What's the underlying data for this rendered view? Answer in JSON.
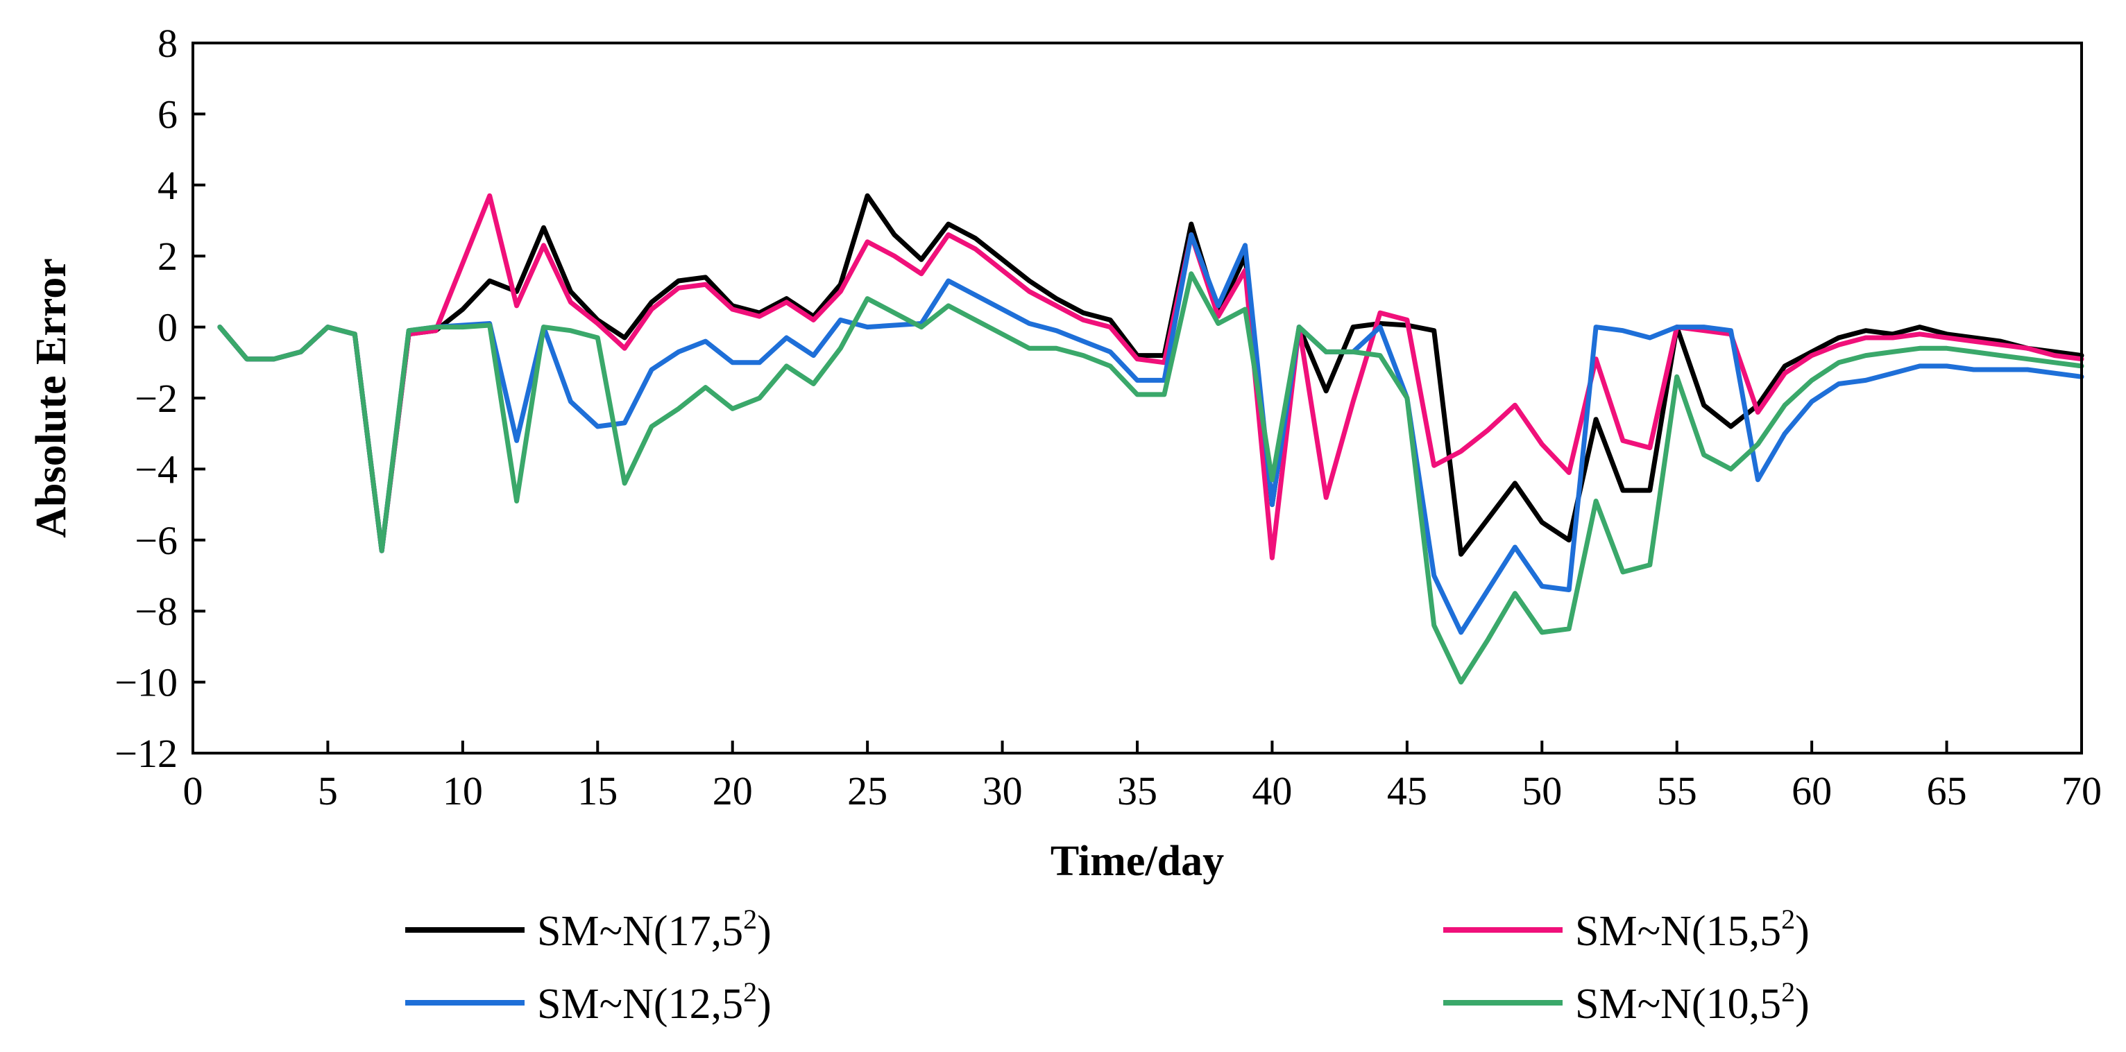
{
  "chart_data": {
    "type": "line",
    "title": "",
    "xlabel": "Time/day",
    "ylabel": "Absolute Error",
    "xlim": [
      0,
      70
    ],
    "ylim": [
      -12,
      8
    ],
    "xticks": [
      0,
      5,
      10,
      15,
      20,
      25,
      30,
      35,
      40,
      45,
      50,
      55,
      60,
      65,
      70
    ],
    "yticks": [
      -12,
      -10,
      -8,
      -6,
      -4,
      -2,
      0,
      2,
      4,
      6,
      8
    ],
    "grid": false,
    "legend_position": "bottom",
    "x": [
      1,
      2,
      3,
      4,
      5,
      6,
      7,
      8,
      9,
      10,
      11,
      12,
      13,
      14,
      15,
      16,
      17,
      18,
      19,
      20,
      21,
      22,
      23,
      24,
      25,
      26,
      27,
      28,
      29,
      30,
      31,
      32,
      33,
      34,
      35,
      36,
      37,
      38,
      39,
      40,
      41,
      42,
      43,
      44,
      45,
      46,
      47,
      48,
      49,
      50,
      51,
      52,
      53,
      54,
      55,
      56,
      57,
      58,
      59,
      60,
      61,
      62,
      63,
      64,
      65,
      66,
      67,
      68,
      69,
      70
    ],
    "series": [
      {
        "name": "SM~N(17,5²)",
        "name_base": "SM~N(17,5",
        "name_sup": "2",
        "name_tail": ")",
        "color": "#000000",
        "values": [
          0,
          -0.9,
          -0.9,
          -0.7,
          0,
          -0.2,
          -6.3,
          -0.2,
          -0.1,
          0.5,
          1.3,
          1.0,
          2.8,
          1.0,
          0.2,
          -0.3,
          0.7,
          1.3,
          1.4,
          0.6,
          0.4,
          0.8,
          0.3,
          1.2,
          3.7,
          2.6,
          1.9,
          2.9,
          2.5,
          1.9,
          1.3,
          0.8,
          0.4,
          0.2,
          -0.8,
          -0.8,
          2.9,
          0.4,
          2.0,
          -5.0,
          0,
          -1.8,
          0,
          0.1,
          0.05,
          -0.1,
          -6.4,
          -5.4,
          -4.4,
          -5.5,
          -6.0,
          -2.6,
          -4.6,
          -4.6,
          0,
          -2.2,
          -2.8,
          -2.2,
          -1.1,
          -0.7,
          -0.3,
          -0.1,
          -0.2,
          0,
          -0.2,
          -0.3,
          -0.4,
          -0.6,
          -0.7,
          -0.8
        ]
      },
      {
        "name": "SM~N(15,5²)",
        "name_base": "SM~N(15,5",
        "name_sup": "2",
        "name_tail": ")",
        "color": "#f0107a",
        "values": [
          0,
          -0.9,
          -0.9,
          -0.7,
          0,
          -0.2,
          -6.3,
          -0.2,
          -0.1,
          1.8,
          3.7,
          0.6,
          2.3,
          0.7,
          0.1,
          -0.6,
          0.5,
          1.1,
          1.2,
          0.5,
          0.3,
          0.7,
          0.2,
          1.0,
          2.4,
          2.0,
          1.5,
          2.6,
          2.2,
          1.6,
          1.0,
          0.6,
          0.2,
          0,
          -0.9,
          -1.0,
          2.6,
          0.3,
          1.6,
          -6.5,
          0,
          -4.8,
          -2.1,
          0.4,
          0.2,
          -3.9,
          -3.5,
          -2.9,
          -2.2,
          -3.3,
          -4.1,
          -0.9,
          -3.2,
          -3.4,
          0,
          -0.1,
          -0.2,
          -2.4,
          -1.3,
          -0.8,
          -0.5,
          -0.3,
          -0.3,
          -0.2,
          -0.3,
          -0.4,
          -0.5,
          -0.6,
          -0.8,
          -0.9
        ]
      },
      {
        "name": "SM~N(12,5²)",
        "name_base": "SM~N(12,5",
        "name_sup": "2",
        "name_tail": ")",
        "color": "#1e6fd8",
        "values": [
          0,
          -0.9,
          -0.9,
          -0.7,
          0,
          -0.2,
          -6.3,
          -0.1,
          0,
          0.05,
          0.1,
          -3.2,
          0,
          -2.1,
          -2.8,
          -2.7,
          -1.2,
          -0.7,
          -0.4,
          -1.0,
          -1.0,
          -0.3,
          -0.8,
          0.2,
          0,
          0.05,
          0.1,
          1.3,
          0.9,
          0.5,
          0.1,
          -0.1,
          -0.4,
          -0.7,
          -1.5,
          -1.5,
          2.6,
          0.6,
          2.3,
          -5.0,
          0,
          -0.7,
          -0.7,
          0,
          -2.0,
          -7.0,
          -8.6,
          -7.4,
          -6.2,
          -7.3,
          -7.4,
          0,
          -0.1,
          -0.3,
          0,
          0,
          -0.1,
          -4.3,
          -3.0,
          -2.1,
          -1.6,
          -1.5,
          -1.3,
          -1.1,
          -1.1,
          -1.2,
          -1.2,
          -1.2,
          -1.3,
          -1.4
        ]
      },
      {
        "name": "SM~N(10,5²)",
        "name_base": "SM~N(10,5",
        "name_sup": "2",
        "name_tail": ")",
        "color": "#3aa86a",
        "values": [
          0,
          -0.9,
          -0.9,
          -0.7,
          0,
          -0.2,
          -6.3,
          -0.1,
          0,
          0,
          0.05,
          -4.9,
          0,
          -0.1,
          -0.3,
          -4.4,
          -2.8,
          -2.3,
          -1.7,
          -2.3,
          -2.0,
          -1.1,
          -1.6,
          -0.6,
          0.8,
          0.4,
          0,
          0.6,
          0.2,
          -0.2,
          -0.6,
          -0.6,
          -0.8,
          -1.1,
          -1.9,
          -1.9,
          1.5,
          0.1,
          0.5,
          -4.3,
          0,
          -0.7,
          -0.7,
          -0.8,
          -2.0,
          -8.4,
          -10.0,
          -8.8,
          -7.5,
          -8.6,
          -8.5,
          -4.9,
          -6.9,
          -6.7,
          -1.4,
          -3.6,
          -4.0,
          -3.3,
          -2.2,
          -1.5,
          -1.0,
          -0.8,
          -0.7,
          -0.6,
          -0.6,
          -0.7,
          -0.8,
          -0.9,
          -1.0,
          -1.1
        ]
      }
    ]
  }
}
